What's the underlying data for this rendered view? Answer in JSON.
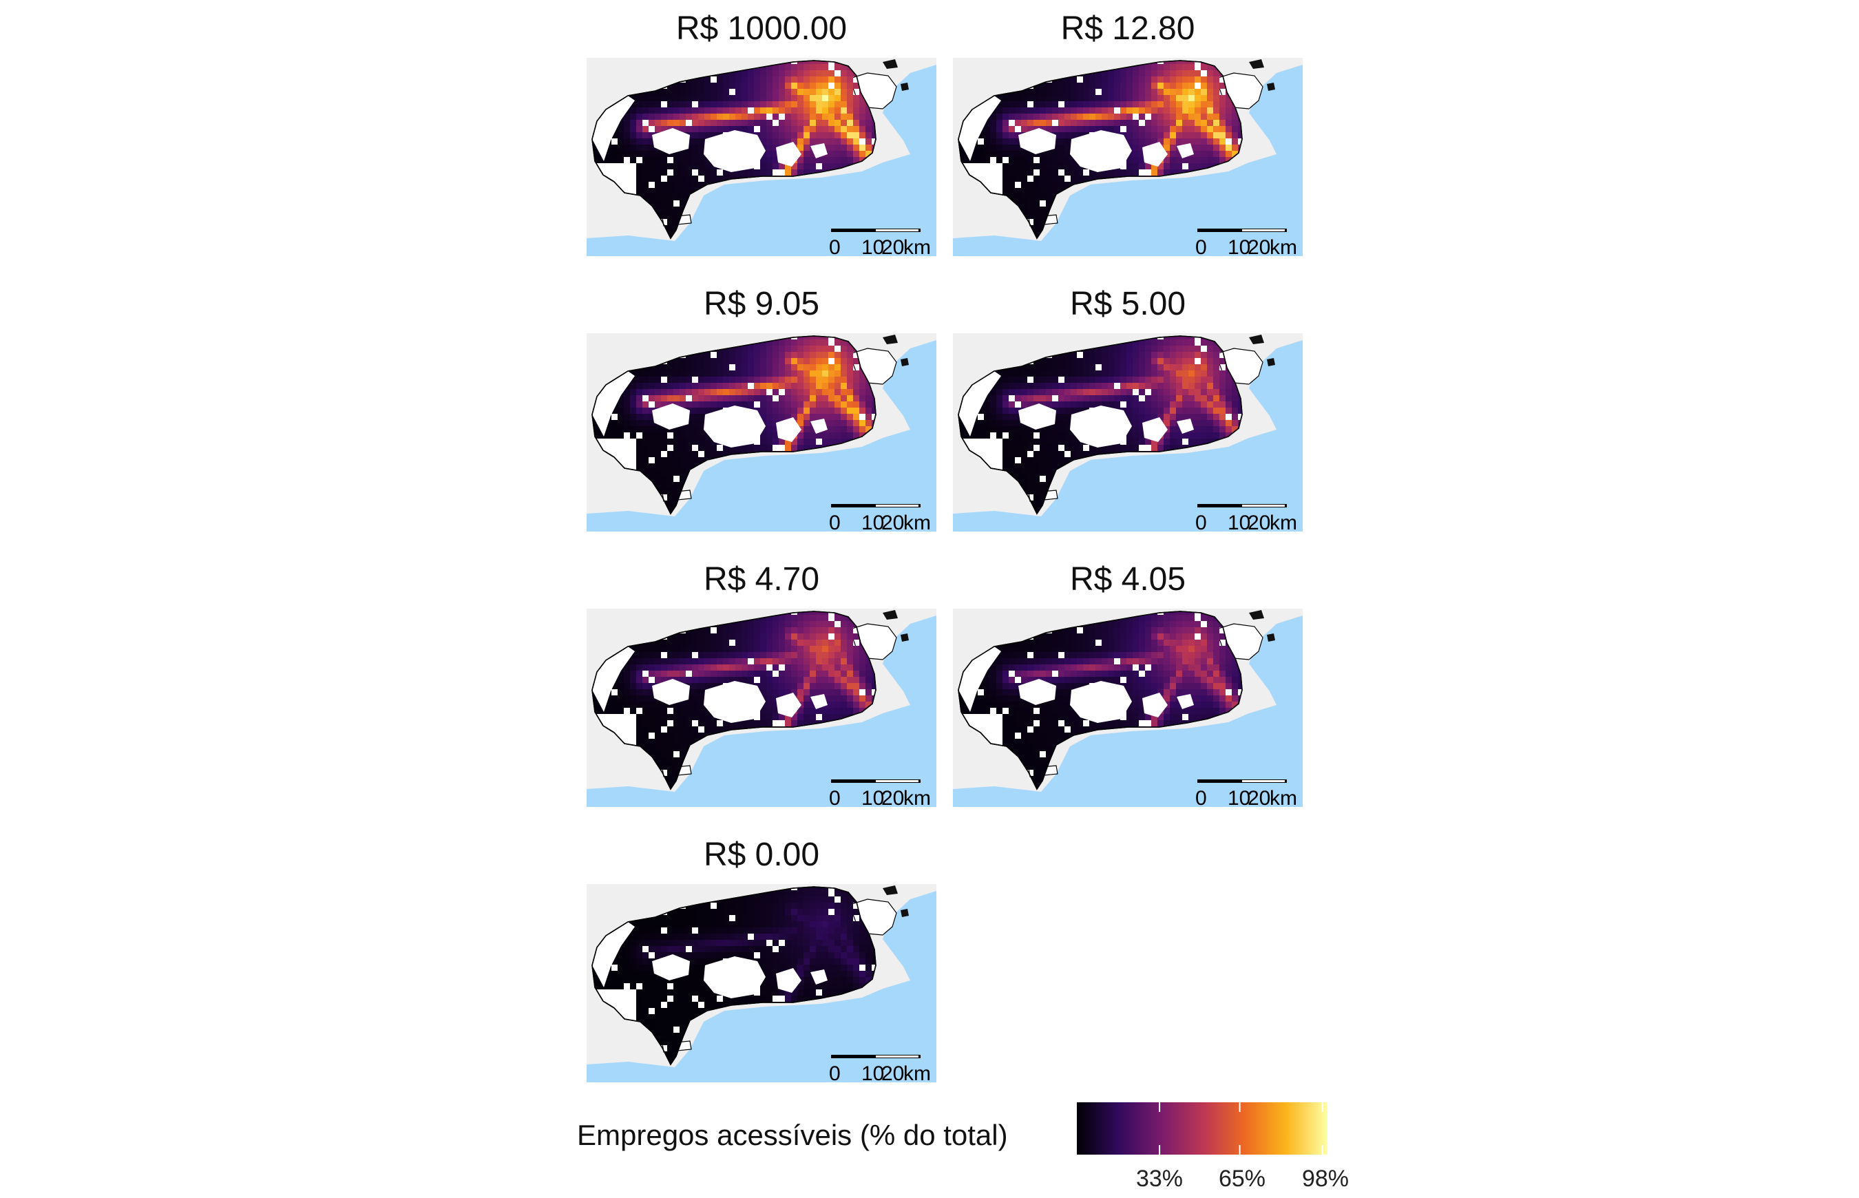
{
  "panels": [
    {
      "title": "R$ 1000.00",
      "intensity": 1.0
    },
    {
      "title": "R$ 12.80",
      "intensity": 0.97
    },
    {
      "title": "R$ 9.05",
      "intensity": 0.85
    },
    {
      "title": "R$ 5.00",
      "intensity": 0.55
    },
    {
      "title": "R$ 4.70",
      "intensity": 0.5
    },
    {
      "title": "R$ 4.05",
      "intensity": 0.4
    },
    {
      "title": "R$ 0.00",
      "intensity": 0.15
    }
  ],
  "scalebar": {
    "labels": [
      "0",
      "10",
      "20",
      "km"
    ]
  },
  "legend": {
    "title": "Empregos acessíveis (% do total)",
    "ticks": [
      "33%",
      "65%",
      "98%"
    ],
    "tick_values": [
      0.33,
      0.65,
      0.98
    ],
    "palette": [
      "#000004",
      "#320a5e",
      "#781b6c",
      "#bb3654",
      "#ec6824",
      "#fbb41a",
      "#fcffa4"
    ]
  },
  "colors": {
    "water": "#a6d8fb",
    "land": "#efefef",
    "empty": "#ffffff",
    "outline": "#000000"
  }
}
